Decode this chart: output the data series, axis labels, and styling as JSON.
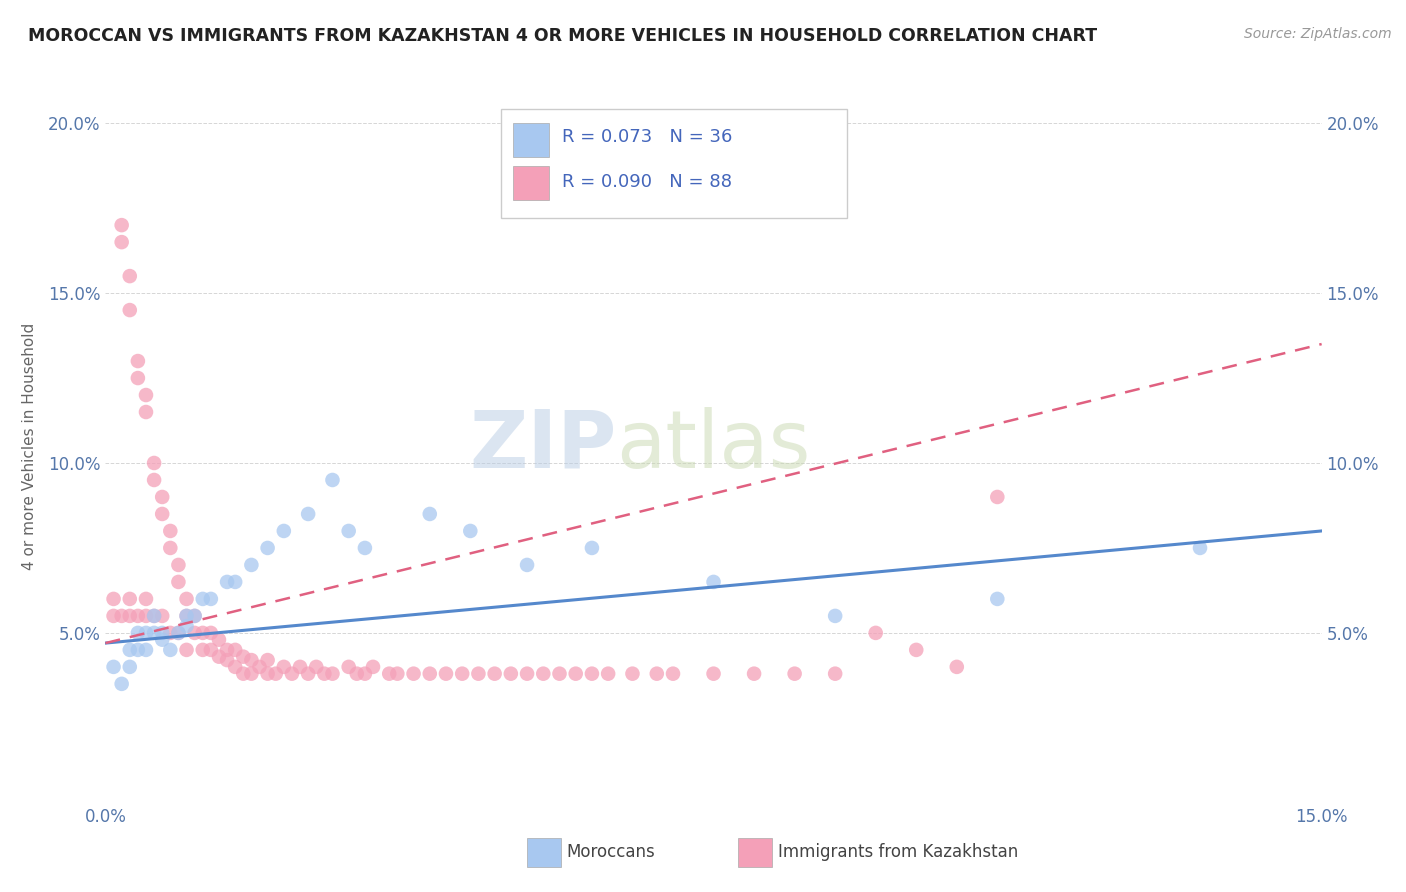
{
  "title": "MOROCCAN VS IMMIGRANTS FROM KAZAKHSTAN 4 OR MORE VEHICLES IN HOUSEHOLD CORRELATION CHART",
  "source": "Source: ZipAtlas.com",
  "ylabel": "4 or more Vehicles in Household",
  "legend_moroccan": "Moroccans",
  "legend_kazakh": "Immigrants from Kazakhstan",
  "r_moroccan": 0.073,
  "n_moroccan": 36,
  "r_kazakh": 0.09,
  "n_kazakh": 88,
  "xmin": 0.0,
  "xmax": 0.15,
  "ymin": 0.0,
  "ymax": 0.21,
  "color_moroccan": "#a8c8f0",
  "color_kazakh": "#f4a0b8",
  "line_moroccan": "#5588cc",
  "line_kazakh": "#e06080",
  "watermark": "ZIPatlas",
  "moroccan_x": [
    0.001,
    0.002,
    0.003,
    0.003,
    0.004,
    0.004,
    0.005,
    0.005,
    0.006,
    0.006,
    0.007,
    0.007,
    0.008,
    0.009,
    0.01,
    0.01,
    0.011,
    0.012,
    0.013,
    0.015,
    0.016,
    0.018,
    0.02,
    0.022,
    0.025,
    0.028,
    0.03,
    0.032,
    0.04,
    0.045,
    0.052,
    0.06,
    0.075,
    0.09,
    0.11,
    0.135
  ],
  "moroccan_y": [
    0.04,
    0.035,
    0.045,
    0.04,
    0.05,
    0.045,
    0.05,
    0.045,
    0.055,
    0.05,
    0.05,
    0.048,
    0.045,
    0.05,
    0.055,
    0.052,
    0.055,
    0.06,
    0.06,
    0.065,
    0.065,
    0.07,
    0.075,
    0.08,
    0.085,
    0.095,
    0.08,
    0.075,
    0.085,
    0.08,
    0.07,
    0.075,
    0.065,
    0.055,
    0.06,
    0.075
  ],
  "kazakh_x": [
    0.001,
    0.001,
    0.002,
    0.002,
    0.002,
    0.003,
    0.003,
    0.003,
    0.003,
    0.004,
    0.004,
    0.004,
    0.005,
    0.005,
    0.005,
    0.005,
    0.006,
    0.006,
    0.006,
    0.007,
    0.007,
    0.007,
    0.008,
    0.008,
    0.008,
    0.009,
    0.009,
    0.009,
    0.01,
    0.01,
    0.01,
    0.011,
    0.011,
    0.012,
    0.012,
    0.013,
    0.013,
    0.014,
    0.014,
    0.015,
    0.015,
    0.016,
    0.016,
    0.017,
    0.017,
    0.018,
    0.018,
    0.019,
    0.02,
    0.02,
    0.021,
    0.022,
    0.023,
    0.024,
    0.025,
    0.026,
    0.027,
    0.028,
    0.03,
    0.031,
    0.032,
    0.033,
    0.035,
    0.036,
    0.038,
    0.04,
    0.042,
    0.044,
    0.046,
    0.048,
    0.05,
    0.052,
    0.054,
    0.056,
    0.058,
    0.06,
    0.062,
    0.065,
    0.068,
    0.07,
    0.075,
    0.08,
    0.085,
    0.09,
    0.095,
    0.1,
    0.105,
    0.11
  ],
  "kazakh_y": [
    0.06,
    0.055,
    0.17,
    0.165,
    0.055,
    0.155,
    0.145,
    0.06,
    0.055,
    0.13,
    0.125,
    0.055,
    0.12,
    0.115,
    0.06,
    0.055,
    0.1,
    0.095,
    0.055,
    0.09,
    0.085,
    0.055,
    0.08,
    0.075,
    0.05,
    0.07,
    0.065,
    0.05,
    0.06,
    0.055,
    0.045,
    0.055,
    0.05,
    0.05,
    0.045,
    0.05,
    0.045,
    0.048,
    0.043,
    0.045,
    0.042,
    0.045,
    0.04,
    0.043,
    0.038,
    0.042,
    0.038,
    0.04,
    0.042,
    0.038,
    0.038,
    0.04,
    0.038,
    0.04,
    0.038,
    0.04,
    0.038,
    0.038,
    0.04,
    0.038,
    0.038,
    0.04,
    0.038,
    0.038,
    0.038,
    0.038,
    0.038,
    0.038,
    0.038,
    0.038,
    0.038,
    0.038,
    0.038,
    0.038,
    0.038,
    0.038,
    0.038,
    0.038,
    0.038,
    0.038,
    0.038,
    0.038,
    0.038,
    0.038,
    0.05,
    0.045,
    0.04,
    0.09
  ]
}
